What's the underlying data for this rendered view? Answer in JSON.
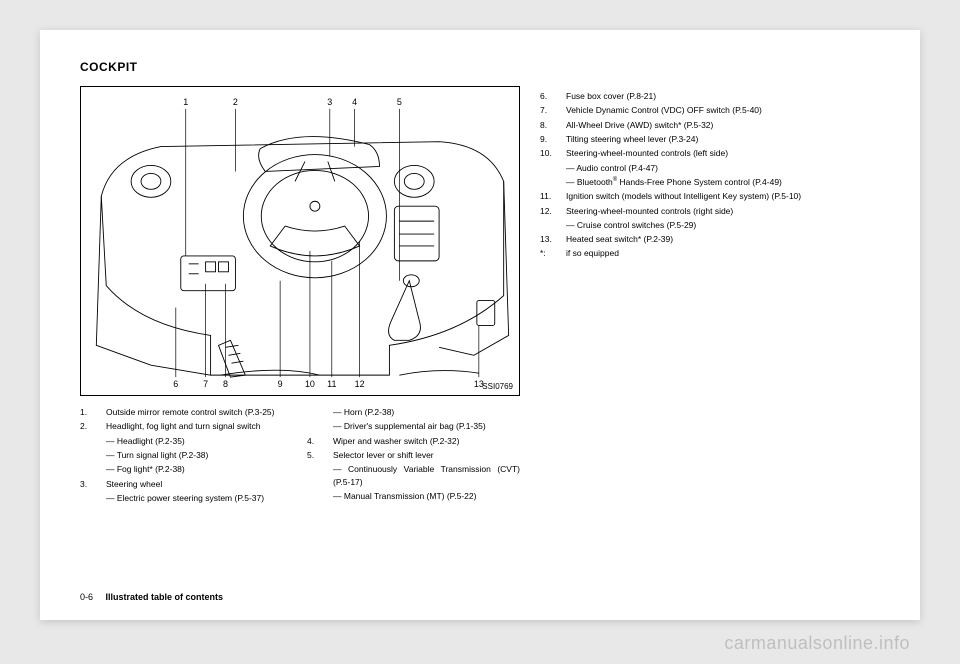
{
  "title": "COCKPIT",
  "figure": {
    "id": "SSI0769",
    "top_labels": [
      "1",
      "2",
      "3",
      "4",
      "5"
    ],
    "bottom_labels": [
      "6",
      "7",
      "8",
      "9",
      "10",
      "11",
      "12",
      "13"
    ],
    "top_x": [
      105,
      155,
      250,
      275,
      320
    ],
    "bottom_x": [
      95,
      125,
      145,
      200,
      230,
      252,
      280,
      400
    ],
    "line_color": "#000000",
    "line_width": 0.9,
    "background": "#ffffff"
  },
  "left_items": [
    {
      "num": "1.",
      "text": "Outside mirror remote control switch (P.3-25)"
    },
    {
      "num": "2.",
      "text": "Headlight, fog light and turn signal switch",
      "subs": [
        "— Headlight (P.2-35)",
        "— Turn signal light (P.2-38)",
        "— Fog light* (P.2-38)"
      ]
    },
    {
      "num": "3.",
      "text": "Steering wheel",
      "subs": [
        "— Electric power steering system (P.5-37)"
      ]
    }
  ],
  "mid_items": [
    {
      "sub": "— Horn (P.2-38)"
    },
    {
      "sub": "— Driver's supplemental air bag (P.1-35)"
    },
    {
      "num": "4.",
      "text": "Wiper and washer switch (P.2-32)"
    },
    {
      "num": "5.",
      "text": "Selector lever or shift lever",
      "subs": [
        "— Continuously Variable Transmission (CVT) (P.5-17)",
        "— Manual Transmission (MT) (P.5-22)"
      ]
    }
  ],
  "right_items": [
    {
      "num": "6.",
      "text": "Fuse box cover (P.8-21)"
    },
    {
      "num": "7.",
      "text": "Vehicle Dynamic Control (VDC) OFF switch (P.5-40)"
    },
    {
      "num": "8.",
      "text": "All-Wheel Drive (AWD) switch* (P.5-32)"
    },
    {
      "num": "9.",
      "text": "Tilting steering wheel lever (P.3-24)"
    },
    {
      "num": "10.",
      "text": "Steering-wheel-mounted controls (left side)",
      "subs": [
        "— Audio control (P.4-47)",
        "— Bluetooth® Hands-Free Phone System control (P.4-49)"
      ]
    },
    {
      "num": "11.",
      "text": "Ignition switch (models without Intelligent Key system) (P.5-10)"
    },
    {
      "num": "12.",
      "text": "Steering-wheel-mounted controls (right side)",
      "subs": [
        "— Cruise control switches (P.5-29)"
      ]
    },
    {
      "num": "13.",
      "text": "Heated seat switch* (P.2-39)"
    },
    {
      "num": "*:",
      "text": "if so equipped"
    }
  ],
  "footer": {
    "page": "0-6",
    "section": "Illustrated table of contents"
  },
  "watermark": "carmanualsonline.info"
}
